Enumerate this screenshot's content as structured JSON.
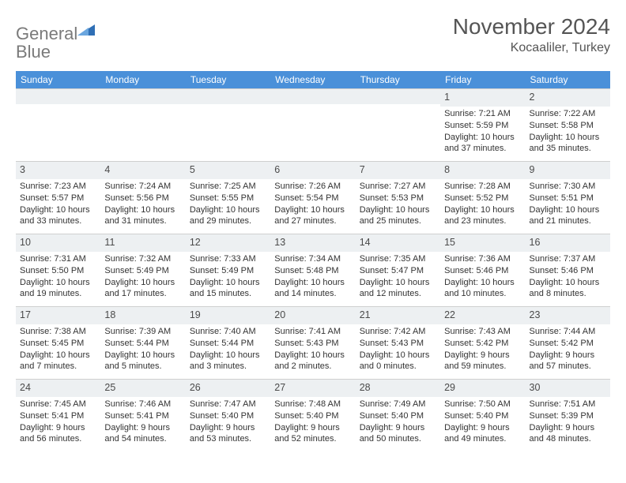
{
  "brand": {
    "word1": "General",
    "word2": "Blue",
    "word1_color": "#7a7a7a",
    "word2_color": "#3b7dc4",
    "shape_color": "#2f6fb5"
  },
  "header": {
    "title": "November 2024",
    "location": "Kocaaliler, Turkey",
    "title_color": "#555555"
  },
  "theme": {
    "header_bg": "#4a90d9",
    "header_fg": "#ffffff",
    "cell_border": "#cfcfcf",
    "shaded_bg": "#edf0f2",
    "text_color": "#333333"
  },
  "weekdays": [
    "Sunday",
    "Monday",
    "Tuesday",
    "Wednesday",
    "Thursday",
    "Friday",
    "Saturday"
  ],
  "weeks": [
    [
      null,
      null,
      null,
      null,
      null,
      {
        "n": "1",
        "sunrise": "Sunrise: 7:21 AM",
        "sunset": "Sunset: 5:59 PM",
        "day1": "Daylight: 10 hours",
        "day2": "and 37 minutes."
      },
      {
        "n": "2",
        "sunrise": "Sunrise: 7:22 AM",
        "sunset": "Sunset: 5:58 PM",
        "day1": "Daylight: 10 hours",
        "day2": "and 35 minutes."
      }
    ],
    [
      {
        "n": "3",
        "sunrise": "Sunrise: 7:23 AM",
        "sunset": "Sunset: 5:57 PM",
        "day1": "Daylight: 10 hours",
        "day2": "and 33 minutes."
      },
      {
        "n": "4",
        "sunrise": "Sunrise: 7:24 AM",
        "sunset": "Sunset: 5:56 PM",
        "day1": "Daylight: 10 hours",
        "day2": "and 31 minutes."
      },
      {
        "n": "5",
        "sunrise": "Sunrise: 7:25 AM",
        "sunset": "Sunset: 5:55 PM",
        "day1": "Daylight: 10 hours",
        "day2": "and 29 minutes."
      },
      {
        "n": "6",
        "sunrise": "Sunrise: 7:26 AM",
        "sunset": "Sunset: 5:54 PM",
        "day1": "Daylight: 10 hours",
        "day2": "and 27 minutes."
      },
      {
        "n": "7",
        "sunrise": "Sunrise: 7:27 AM",
        "sunset": "Sunset: 5:53 PM",
        "day1": "Daylight: 10 hours",
        "day2": "and 25 minutes."
      },
      {
        "n": "8",
        "sunrise": "Sunrise: 7:28 AM",
        "sunset": "Sunset: 5:52 PM",
        "day1": "Daylight: 10 hours",
        "day2": "and 23 minutes."
      },
      {
        "n": "9",
        "sunrise": "Sunrise: 7:30 AM",
        "sunset": "Sunset: 5:51 PM",
        "day1": "Daylight: 10 hours",
        "day2": "and 21 minutes."
      }
    ],
    [
      {
        "n": "10",
        "sunrise": "Sunrise: 7:31 AM",
        "sunset": "Sunset: 5:50 PM",
        "day1": "Daylight: 10 hours",
        "day2": "and 19 minutes."
      },
      {
        "n": "11",
        "sunrise": "Sunrise: 7:32 AM",
        "sunset": "Sunset: 5:49 PM",
        "day1": "Daylight: 10 hours",
        "day2": "and 17 minutes."
      },
      {
        "n": "12",
        "sunrise": "Sunrise: 7:33 AM",
        "sunset": "Sunset: 5:49 PM",
        "day1": "Daylight: 10 hours",
        "day2": "and 15 minutes."
      },
      {
        "n": "13",
        "sunrise": "Sunrise: 7:34 AM",
        "sunset": "Sunset: 5:48 PM",
        "day1": "Daylight: 10 hours",
        "day2": "and 14 minutes."
      },
      {
        "n": "14",
        "sunrise": "Sunrise: 7:35 AM",
        "sunset": "Sunset: 5:47 PM",
        "day1": "Daylight: 10 hours",
        "day2": "and 12 minutes."
      },
      {
        "n": "15",
        "sunrise": "Sunrise: 7:36 AM",
        "sunset": "Sunset: 5:46 PM",
        "day1": "Daylight: 10 hours",
        "day2": "and 10 minutes."
      },
      {
        "n": "16",
        "sunrise": "Sunrise: 7:37 AM",
        "sunset": "Sunset: 5:46 PM",
        "day1": "Daylight: 10 hours",
        "day2": "and 8 minutes."
      }
    ],
    [
      {
        "n": "17",
        "sunrise": "Sunrise: 7:38 AM",
        "sunset": "Sunset: 5:45 PM",
        "day1": "Daylight: 10 hours",
        "day2": "and 7 minutes."
      },
      {
        "n": "18",
        "sunrise": "Sunrise: 7:39 AM",
        "sunset": "Sunset: 5:44 PM",
        "day1": "Daylight: 10 hours",
        "day2": "and 5 minutes."
      },
      {
        "n": "19",
        "sunrise": "Sunrise: 7:40 AM",
        "sunset": "Sunset: 5:44 PM",
        "day1": "Daylight: 10 hours",
        "day2": "and 3 minutes."
      },
      {
        "n": "20",
        "sunrise": "Sunrise: 7:41 AM",
        "sunset": "Sunset: 5:43 PM",
        "day1": "Daylight: 10 hours",
        "day2": "and 2 minutes."
      },
      {
        "n": "21",
        "sunrise": "Sunrise: 7:42 AM",
        "sunset": "Sunset: 5:43 PM",
        "day1": "Daylight: 10 hours",
        "day2": "and 0 minutes."
      },
      {
        "n": "22",
        "sunrise": "Sunrise: 7:43 AM",
        "sunset": "Sunset: 5:42 PM",
        "day1": "Daylight: 9 hours",
        "day2": "and 59 minutes."
      },
      {
        "n": "23",
        "sunrise": "Sunrise: 7:44 AM",
        "sunset": "Sunset: 5:42 PM",
        "day1": "Daylight: 9 hours",
        "day2": "and 57 minutes."
      }
    ],
    [
      {
        "n": "24",
        "sunrise": "Sunrise: 7:45 AM",
        "sunset": "Sunset: 5:41 PM",
        "day1": "Daylight: 9 hours",
        "day2": "and 56 minutes."
      },
      {
        "n": "25",
        "sunrise": "Sunrise: 7:46 AM",
        "sunset": "Sunset: 5:41 PM",
        "day1": "Daylight: 9 hours",
        "day2": "and 54 minutes."
      },
      {
        "n": "26",
        "sunrise": "Sunrise: 7:47 AM",
        "sunset": "Sunset: 5:40 PM",
        "day1": "Daylight: 9 hours",
        "day2": "and 53 minutes."
      },
      {
        "n": "27",
        "sunrise": "Sunrise: 7:48 AM",
        "sunset": "Sunset: 5:40 PM",
        "day1": "Daylight: 9 hours",
        "day2": "and 52 minutes."
      },
      {
        "n": "28",
        "sunrise": "Sunrise: 7:49 AM",
        "sunset": "Sunset: 5:40 PM",
        "day1": "Daylight: 9 hours",
        "day2": "and 50 minutes."
      },
      {
        "n": "29",
        "sunrise": "Sunrise: 7:50 AM",
        "sunset": "Sunset: 5:40 PM",
        "day1": "Daylight: 9 hours",
        "day2": "and 49 minutes."
      },
      {
        "n": "30",
        "sunrise": "Sunrise: 7:51 AM",
        "sunset": "Sunset: 5:39 PM",
        "day1": "Daylight: 9 hours",
        "day2": "and 48 minutes."
      }
    ]
  ]
}
